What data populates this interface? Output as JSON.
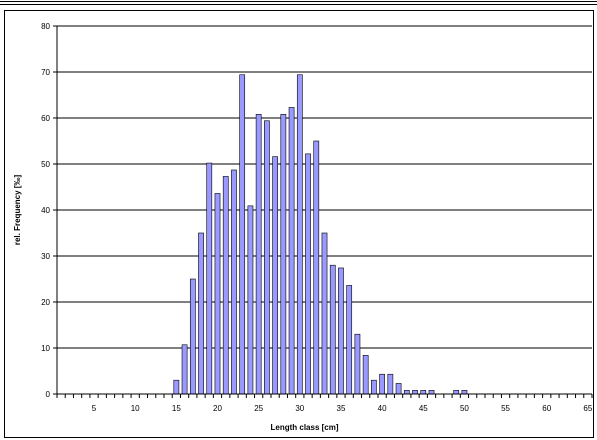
{
  "chart_data": {
    "type": "bar",
    "title": "",
    "xlabel": "Length class  [cm]",
    "ylabel": "rel. Frequency  [‰]",
    "xlim": [
      0,
      65
    ],
    "ylim": [
      0,
      80
    ],
    "x_ticks": [
      5,
      10,
      15,
      20,
      25,
      30,
      35,
      40,
      45,
      50,
      55,
      60,
      65
    ],
    "y_ticks": [
      0,
      10,
      20,
      30,
      40,
      50,
      60,
      70,
      80
    ],
    "grid": "horizontal",
    "bar_color": "#9999ff",
    "series": [
      {
        "x": [
          15,
          16,
          17,
          18,
          19,
          20,
          21,
          22,
          23,
          24,
          25,
          26,
          27,
          28,
          29,
          30,
          31,
          32,
          33,
          34,
          35,
          36,
          37,
          38,
          39,
          40,
          41,
          42,
          43,
          44,
          45,
          46,
          47,
          48,
          49,
          50
        ],
        "values": [
          3,
          10.7,
          25,
          35,
          50.2,
          43.6,
          47.3,
          48.7,
          69.4,
          40.9,
          60.8,
          59.4,
          51.6,
          60.8,
          62.3,
          69.4,
          52.2,
          55.0,
          35.0,
          28.0,
          27.4,
          23.6,
          13.0,
          8.4,
          3.0,
          4.3,
          4.3,
          2.3,
          0.8,
          0.8,
          0.8,
          0.8,
          0,
          0,
          0.8,
          0.8
        ]
      }
    ]
  }
}
